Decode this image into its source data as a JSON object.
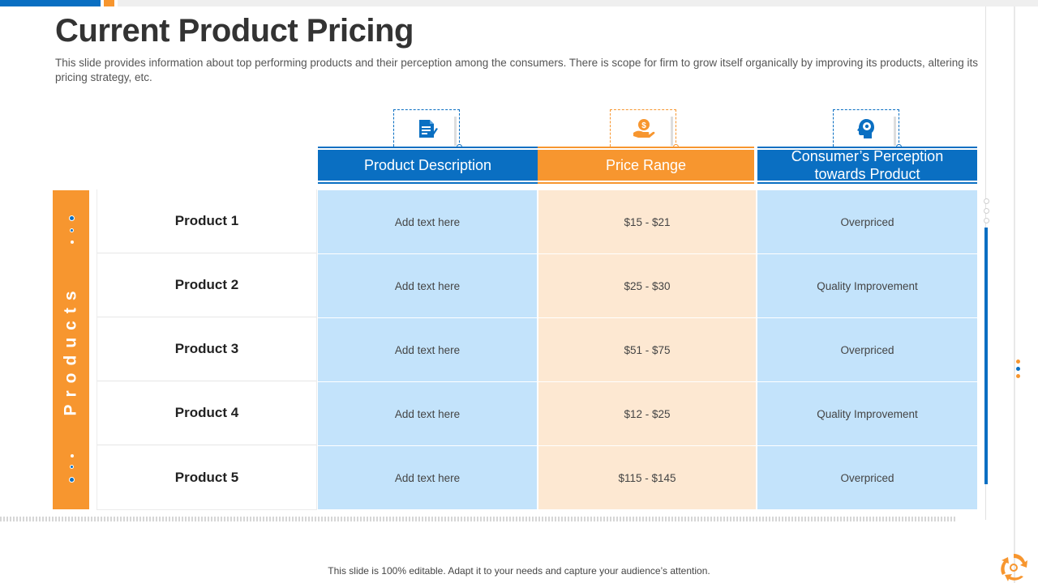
{
  "slide": {
    "title": "Current Product Pricing",
    "subtitle": "This slide provides information about top performing products and their perception among the consumers. There is scope for firm to grow itself organically by improving its products, altering its pricing strategy, etc.",
    "footer": "This slide is 100% editable. Adapt it to your needs and capture your audience’s attention."
  },
  "table": {
    "row_group_label": "Products",
    "columns": [
      {
        "label": "Product Description",
        "icon": "document-icon",
        "color": "#0a6fc2"
      },
      {
        "label": "Price Range",
        "icon": "money-hand-icon",
        "color": "#f7962f"
      },
      {
        "label": "Consumer’s Perception towards Product",
        "icon": "head-gear-icon",
        "color": "#0a6fc2"
      }
    ],
    "rows": [
      {
        "product": "Product 1",
        "description": "Add text here",
        "price": "$15  -  $21",
        "perception": "Overpriced"
      },
      {
        "product": "Product 2",
        "description": "Add text here",
        "price": "$25  - $30",
        "perception": "Quality Improvement"
      },
      {
        "product": "Product 3",
        "description": "Add text here",
        "price": "$51  - $75",
        "perception": "Overpriced"
      },
      {
        "product": "Product 4",
        "description": "Add text here",
        "price": "$12  - $25",
        "perception": "Quality Improvement"
      },
      {
        "product": "Product 5",
        "description": "Add text here",
        "price": "$115  - $145",
        "perception": "Overpriced"
      }
    ]
  },
  "colors": {
    "blue": "#0a6fc2",
    "orange": "#f7962f",
    "light_blue": "#c3e3fb",
    "peach": "#fde8d2"
  }
}
